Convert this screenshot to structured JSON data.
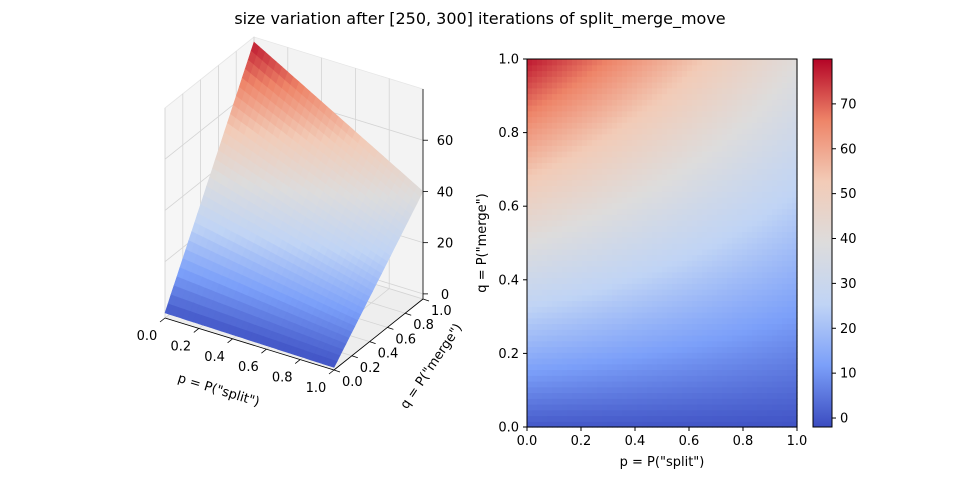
{
  "figure": {
    "title": "size variation after [250, 300] iterations of split_merge_move",
    "colormap": "coolwarm",
    "colormap_stops": [
      "#3b4cc0",
      "#7b9ff9",
      "#c0d4f5",
      "#dddcdc",
      "#f2cbb7",
      "#ee8468",
      "#b40426"
    ]
  },
  "chart_data": [
    {
      "type": "surface",
      "title": "",
      "xlabel": "p = P(\"split\")",
      "ylabel": "q = P(\"merge\")",
      "zlabel": "",
      "xlim": [
        0,
        1
      ],
      "ylim": [
        0,
        1
      ],
      "zlim": [
        -2,
        80
      ],
      "x_ticks": [
        "0.0",
        "0.2",
        "0.4",
        "0.6",
        "0.8",
        "1.0"
      ],
      "y_ticks": [
        "0.0",
        "0.2",
        "0.4",
        "0.6",
        "0.8",
        "1.0"
      ],
      "z_ticks": [
        "0",
        "20",
        "40",
        "60"
      ],
      "grid": true,
      "corner_values": {
        "p0_q0": 0,
        "p1_q0": -1,
        "p0_q1": 78,
        "p1_q1": 40
      }
    },
    {
      "type": "heatmap",
      "title": "",
      "xlabel": "p = P(\"split\")",
      "ylabel": "q = P(\"merge\")",
      "xlim": [
        0,
        1
      ],
      "ylim": [
        0,
        1
      ],
      "x_ticks": [
        "0.0",
        "0.2",
        "0.4",
        "0.6",
        "0.8",
        "1.0"
      ],
      "y_ticks": [
        "0.0",
        "0.2",
        "0.4",
        "0.6",
        "0.8",
        "1.0"
      ],
      "corner_values": {
        "p0_q0": 0,
        "p1_q0": -1,
        "p0_q1": 78,
        "p1_q1": 40
      },
      "colorbar": {
        "vmin": -2,
        "vmax": 80,
        "ticks": [
          "0",
          "10",
          "20",
          "30",
          "40",
          "50",
          "60",
          "70"
        ]
      }
    }
  ]
}
